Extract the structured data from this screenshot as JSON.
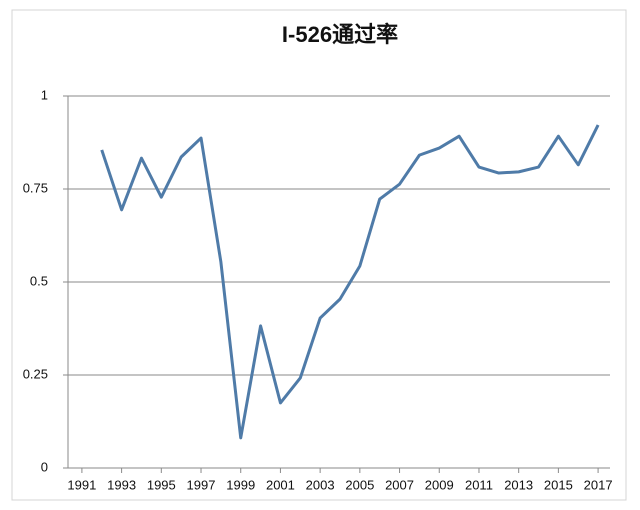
{
  "chart_data": {
    "type": "line",
    "title": "I-526通过率",
    "x": [
      1992,
      1993,
      1994,
      1995,
      1996,
      1997,
      1998,
      1999,
      2000,
      2001,
      2002,
      2003,
      2004,
      2005,
      2006,
      2007,
      2008,
      2009,
      2010,
      2011,
      2012,
      2013,
      2014,
      2015,
      2016,
      2017
    ],
    "series": [
      {
        "name": "I-526",
        "color": "#4f7ba8",
        "values": [
          0.855,
          0.694,
          0.833,
          0.728,
          0.836,
          0.887,
          0.554,
          0.081,
          0.382,
          0.175,
          0.242,
          0.403,
          0.454,
          0.543,
          0.723,
          0.763,
          0.841,
          0.86,
          0.892,
          0.809,
          0.793,
          0.796,
          0.809,
          0.892,
          0.815,
          0.922
        ]
      }
    ],
    "xlim": [
      1990.3,
      2017.6
    ],
    "xticks": [
      1991,
      1993,
      1995,
      1997,
      1999,
      2001,
      2003,
      2005,
      2007,
      2009,
      2011,
      2013,
      2015,
      2017
    ],
    "ylim": [
      0,
      1
    ],
    "yticks": [
      0,
      0.25,
      0.5,
      0.75,
      1
    ],
    "grid": true
  }
}
